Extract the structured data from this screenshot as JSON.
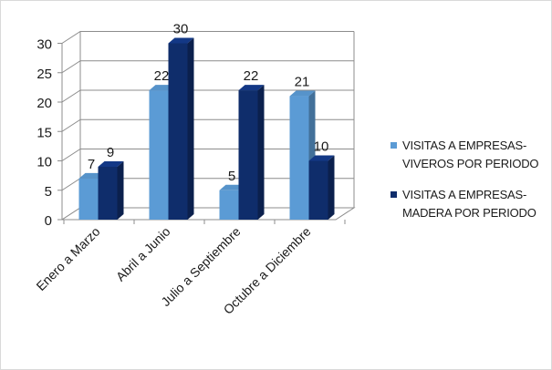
{
  "chart_data": {
    "type": "bar",
    "categories": [
      "Enero a Marzo",
      "Abril a Junio",
      "Julio a  Septiembre",
      "Octubre a Diciembre"
    ],
    "series": [
      {
        "name": "VISITAS  A EMPRESAS-VIVEROS POR PERIODO",
        "values": [
          7,
          22,
          5,
          21
        ],
        "color": "#5b9bd5"
      },
      {
        "name": "VISITAS  A EMPRESAS-MADERA POR PERIODO",
        "values": [
          9,
          30,
          22,
          10
        ],
        "color": "#0f2d6b"
      }
    ],
    "ylim": [
      0,
      30
    ],
    "yticks": [
      0,
      5,
      10,
      15,
      20,
      25,
      30
    ],
    "grid": true,
    "legend_position": "right",
    "data_labels": true,
    "style": "3d-clustered-column"
  },
  "legend": {
    "items": [
      {
        "line1": "VISITAS  A EMPRESAS-",
        "line2": "VIVEROS POR PERIODO",
        "color": "#5b9bd5"
      },
      {
        "line1": "VISITAS  A EMPRESAS-",
        "line2": "MADERA POR PERIODO",
        "color": "#0f2d6b"
      }
    ]
  }
}
